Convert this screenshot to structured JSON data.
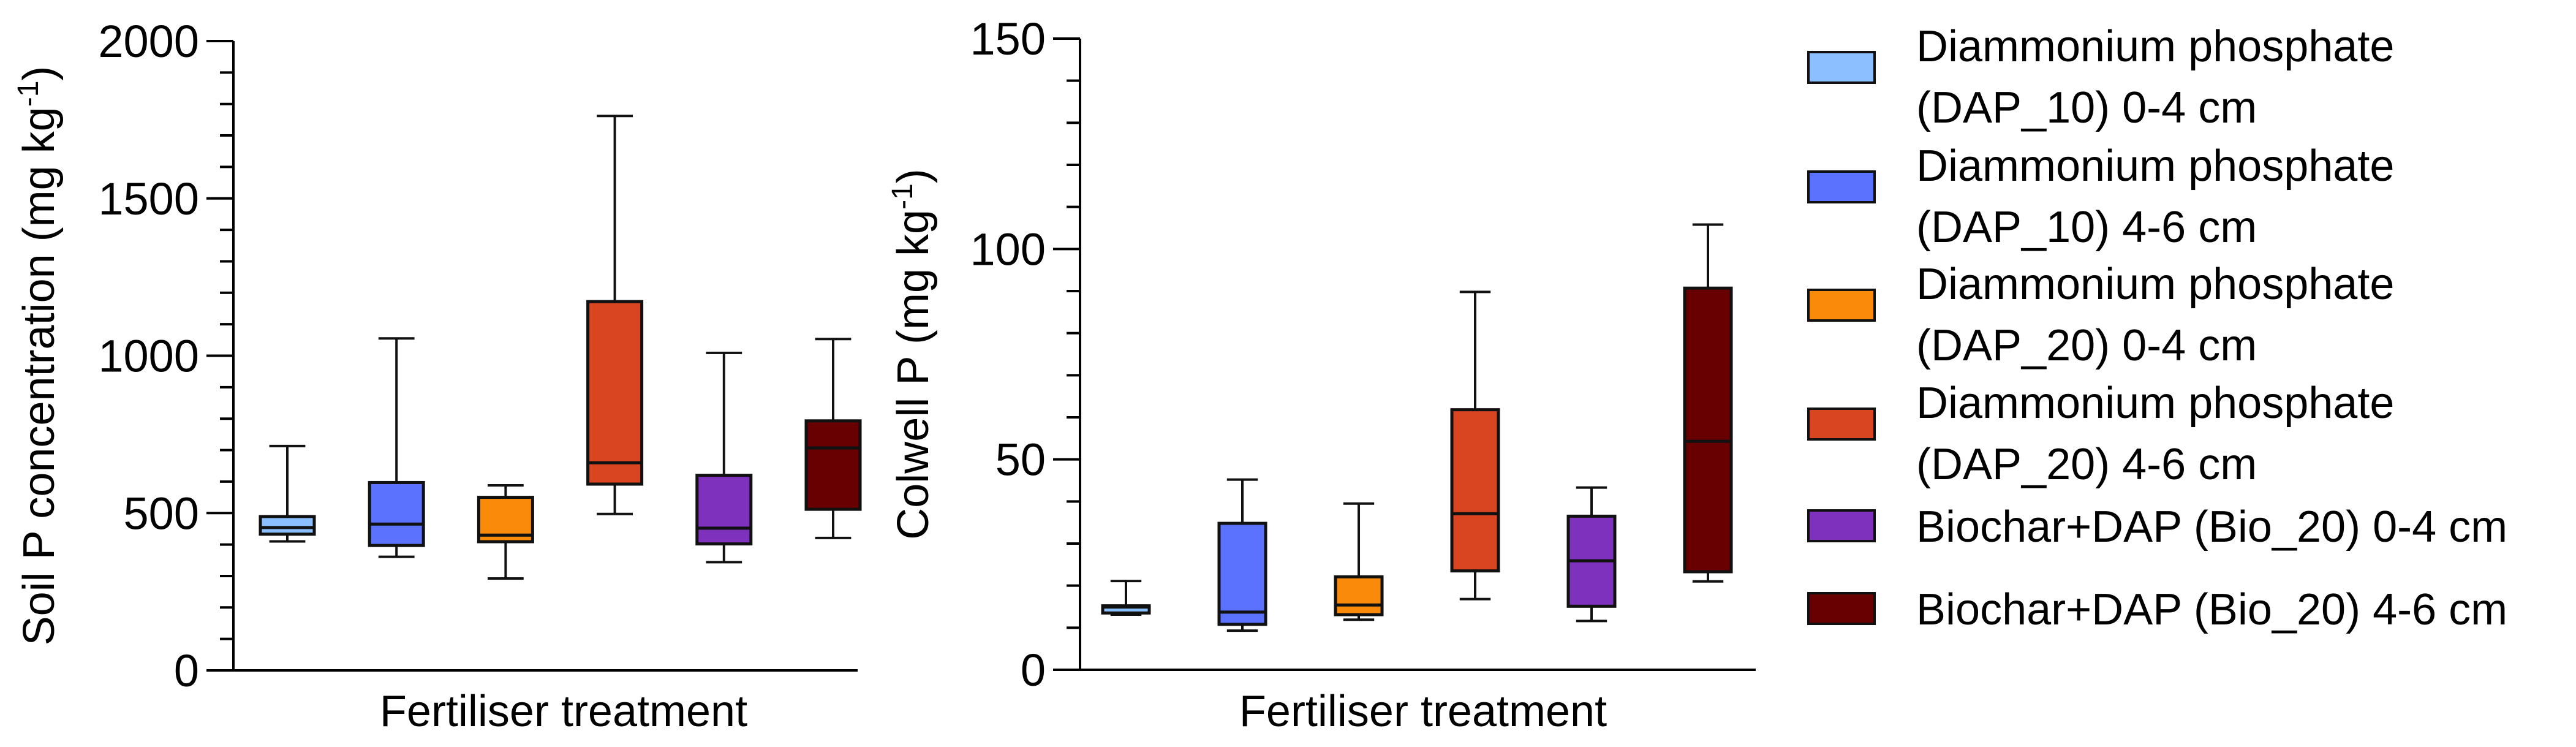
{
  "chart_data": [
    {
      "type": "box",
      "id": "soil-p",
      "title": "",
      "xlabel": "Fertiliser treatment",
      "ylabel": "Soil P concentration (mg kg",
      "ylabel_sup": "-1",
      "ylabel_end": ")",
      "ylim": [
        0,
        2000
      ],
      "major_ticks": [
        0,
        500,
        1000,
        1500,
        2000
      ],
      "tick_labels": [
        "0",
        "500",
        "1000",
        "1500",
        "2000"
      ],
      "minor_tick_step": 100,
      "grid": false,
      "categories": [
        "Diammonium phosphate (DAP_10) 0-4 cm",
        "Diammonium phosphate (DAP_10) 4-6 cm",
        "Diammonium phosphate (DAP_20) 0-4 cm",
        "Diammonium phosphate (DAP_20) 4-6 cm",
        "Biochar+DAP (Bio_20) 0-4 cm",
        "Biochar+DAP (Bio_20) 4-6 cm"
      ],
      "series": [
        {
          "name": "Diammonium phosphate (DAP_10) 0-4 cm",
          "min": 410,
          "q1": 433,
          "median": 454,
          "q3": 489,
          "max": 713
        },
        {
          "name": "Diammonium phosphate (DAP_10) 4-6 cm",
          "min": 361,
          "q1": 397,
          "median": 465,
          "q3": 597,
          "max": 1055
        },
        {
          "name": "Diammonium phosphate (DAP_20) 0-4 cm",
          "min": 292,
          "q1": 409,
          "median": 430,
          "q3": 550,
          "max": 588
        },
        {
          "name": "Diammonium phosphate (DAP_20) 4-6 cm",
          "min": 497,
          "q1": 592,
          "median": 660,
          "q3": 1172,
          "max": 1762
        },
        {
          "name": "Biochar+DAP (Bio_20) 0-4 cm",
          "min": 344,
          "q1": 402,
          "median": 452,
          "q3": 620,
          "max": 1009
        },
        {
          "name": "Biochar+DAP (Bio_20) 4-6 cm",
          "min": 421,
          "q1": 512,
          "median": 707,
          "q3": 793,
          "max": 1053
        }
      ]
    },
    {
      "type": "box",
      "id": "colwell-p",
      "title": "",
      "xlabel": "Fertiliser treatment",
      "ylabel": "Colwell P (mg kg",
      "ylabel_sup": "-1",
      "ylabel_end": ")",
      "ylim": [
        0,
        150
      ],
      "major_ticks": [
        0,
        50,
        100,
        150
      ],
      "tick_labels": [
        "0",
        "50",
        "100",
        "150"
      ],
      "minor_tick_step": 10,
      "grid": false,
      "categories": [
        "Diammonium phosphate (DAP_10) 0-4 cm",
        "Diammonium phosphate (DAP_10) 4-6 cm",
        "Diammonium phosphate (DAP_20) 0-4 cm",
        "Diammonium phosphate (DAP_20) 4-6 cm",
        "Biochar+DAP (Bio_20) 0-4 cm",
        "Biochar+DAP (Bio_20) 4-6 cm"
      ],
      "series": [
        {
          "name": "Diammonium phosphate (DAP_10) 0-4 cm",
          "min": 13.1,
          "q1": 13.5,
          "median": 14.9,
          "q3": 15.2,
          "max": 21.1
        },
        {
          "name": "Diammonium phosphate (DAP_10) 4-6 cm",
          "min": 9.3,
          "q1": 10.8,
          "median": 13.7,
          "q3": 34.8,
          "max": 45.2
        },
        {
          "name": "Diammonium phosphate (DAP_20) 0-4 cm",
          "min": 11.9,
          "q1": 13.1,
          "median": 15.4,
          "q3": 22.1,
          "max": 39.5
        },
        {
          "name": "Diammonium phosphate (DAP_20) 4-6 cm",
          "min": 16.8,
          "q1": 23.5,
          "median": 37.1,
          "q3": 61.8,
          "max": 89.8
        },
        {
          "name": "Biochar+DAP (Bio_20) 0-4 cm",
          "min": 11.6,
          "q1": 15.1,
          "median": 25.9,
          "q3": 36.5,
          "max": 43.3
        },
        {
          "name": "Biochar+DAP (Bio_20) 4-6 cm",
          "min": 21.0,
          "q1": 23.3,
          "median": 54.3,
          "q3": 90.7,
          "max": 105.8
        }
      ]
    }
  ],
  "legend": {
    "placement": "right",
    "items": [
      {
        "lines": [
          "Diammonium phosphate",
          "(DAP_10) 0-4 cm"
        ],
        "color": "#8bbfff"
      },
      {
        "lines": [
          "Diammonium phosphate",
          "(DAP_10) 4-6 cm"
        ],
        "color": "#5a72fe"
      },
      {
        "lines": [
          "Diammonium phosphate",
          "(DAP_20) 0-4 cm"
        ],
        "color": "#fa8a0a"
      },
      {
        "lines": [
          "Diammonium phosphate",
          "(DAP_20)  4-6 cm"
        ],
        "color": "#d84520"
      },
      {
        "lines": [
          "Biochar+DAP (Bio_20) 0-4 cm"
        ],
        "color": "#7e31bc"
      },
      {
        "lines": [
          "Biochar+DAP (Bio_20) 4-6 cm"
        ],
        "color": "#680002"
      }
    ]
  }
}
